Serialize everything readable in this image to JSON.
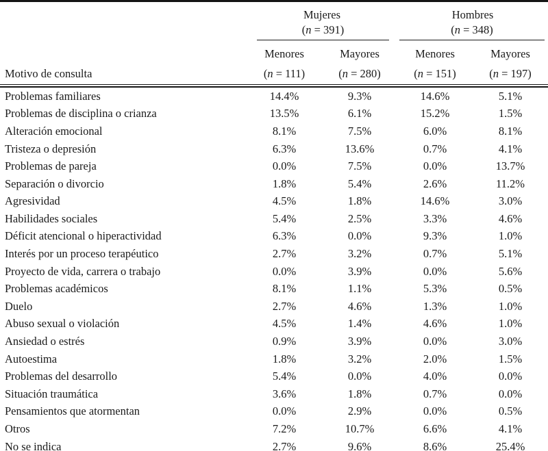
{
  "table": {
    "row_header_label": "Motivo de consulta",
    "n_format": {
      "open": "(",
      "symbol": "n",
      "equals": " = ",
      "close": ")"
    },
    "groups": [
      {
        "label": "Mujeres",
        "n": "391",
        "subcols": [
          {
            "label": "Menores",
            "n": "111"
          },
          {
            "label": "Mayores",
            "n": "280"
          }
        ]
      },
      {
        "label": "Hombres",
        "n": "348",
        "subcols": [
          {
            "label": "Menores",
            "n": "151"
          },
          {
            "label": "Mayores",
            "n": "197"
          }
        ]
      }
    ],
    "rows": [
      {
        "label": "Problemas familiares",
        "values": [
          "14.4%",
          "9.3%",
          "14.6%",
          "5.1%"
        ]
      },
      {
        "label": "Problemas de disciplina o crianza",
        "values": [
          "13.5%",
          "6.1%",
          "15.2%",
          "1.5%"
        ]
      },
      {
        "label": "Alteración emocional",
        "values": [
          "8.1%",
          "7.5%",
          "6.0%",
          "8.1%"
        ]
      },
      {
        "label": "Tristeza o depresión",
        "values": [
          "6.3%",
          "13.6%",
          "0.7%",
          "4.1%"
        ]
      },
      {
        "label": "Problemas de pareja",
        "values": [
          "0.0%",
          "7.5%",
          "0.0%",
          "13.7%"
        ]
      },
      {
        "label": "Separación o divorcio",
        "values": [
          "1.8%",
          "5.4%",
          "2.6%",
          "11.2%"
        ]
      },
      {
        "label": "Agresividad",
        "values": [
          "4.5%",
          "1.8%",
          "14.6%",
          "3.0%"
        ]
      },
      {
        "label": "Habilidades sociales",
        "values": [
          "5.4%",
          "2.5%",
          "3.3%",
          "4.6%"
        ]
      },
      {
        "label": "Déficit atencional o hiperactividad",
        "values": [
          "6.3%",
          "0.0%",
          "9.3%",
          "1.0%"
        ]
      },
      {
        "label": "Interés por un proceso terapéutico",
        "values": [
          "2.7%",
          "3.2%",
          "0.7%",
          "5.1%"
        ]
      },
      {
        "label": "Proyecto de vida, carrera o trabajo",
        "values": [
          "0.0%",
          "3.9%",
          "0.0%",
          "5.6%"
        ]
      },
      {
        "label": "Problemas académicos",
        "values": [
          "8.1%",
          "1.1%",
          "5.3%",
          "0.5%"
        ]
      },
      {
        "label": "Duelo",
        "values": [
          "2.7%",
          "4.6%",
          "1.3%",
          "1.0%"
        ]
      },
      {
        "label": "Abuso sexual o violación",
        "values": [
          "4.5%",
          "1.4%",
          "4.6%",
          "1.0%"
        ]
      },
      {
        "label": "Ansiedad o estrés",
        "values": [
          "0.9%",
          "3.9%",
          "0.0%",
          "3.0%"
        ]
      },
      {
        "label": "Autoestima",
        "values": [
          "1.8%",
          "3.2%",
          "2.0%",
          "1.5%"
        ]
      },
      {
        "label": "Problemas del desarrollo",
        "values": [
          "5.4%",
          "0.0%",
          "4.0%",
          "0.0%"
        ]
      },
      {
        "label": "Situación traumática",
        "values": [
          "3.6%",
          "1.8%",
          "0.7%",
          "0.0%"
        ]
      },
      {
        "label": "Pensamientos que atormentan",
        "values": [
          "0.0%",
          "2.9%",
          "0.0%",
          "0.5%"
        ]
      },
      {
        "label": "Otros",
        "values": [
          "7.2%",
          "10.7%",
          "6.6%",
          "4.1%"
        ]
      },
      {
        "label": "No se indica",
        "values": [
          "2.7%",
          "9.6%",
          "8.6%",
          "25.4%"
        ]
      }
    ]
  }
}
